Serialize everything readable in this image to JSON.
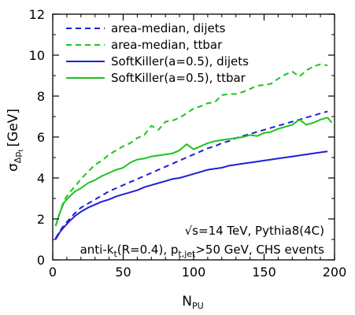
{
  "chart_data": {
    "type": "line",
    "xlabel": "N",
    "xlabel_sub": "PU",
    "ylabel": "σ",
    "ylabel_sub": "Δp",
    "ylabel_subsub": "t",
    "ylabel_unit": "[GeV]",
    "xlim": [
      0,
      200
    ],
    "ylim": [
      0,
      12
    ],
    "xticks": [
      0,
      50,
      100,
      150,
      200
    ],
    "yticks": [
      0,
      2,
      4,
      6,
      8,
      10,
      12
    ],
    "grid": false,
    "legend_position": "top-left",
    "series": [
      {
        "name": "area-median, dijets",
        "color": "#1f1fd6",
        "dash": "dashed",
        "x": [
          2,
          5,
          8,
          12,
          16,
          20,
          25,
          30,
          35,
          40,
          45,
          50,
          55,
          60,
          65,
          70,
          75,
          80,
          85,
          90,
          95,
          100,
          105,
          110,
          115,
          120,
          125,
          130,
          135,
          140,
          145,
          150,
          155,
          160,
          165,
          170,
          175,
          180,
          185,
          190,
          195
        ],
        "values": [
          1.05,
          1.4,
          1.7,
          2.0,
          2.3,
          2.55,
          2.75,
          2.95,
          3.15,
          3.35,
          3.5,
          3.65,
          3.8,
          3.95,
          4.1,
          4.25,
          4.4,
          4.55,
          4.7,
          4.85,
          5.0,
          5.15,
          5.3,
          5.45,
          5.55,
          5.7,
          5.8,
          5.95,
          6.05,
          6.15,
          6.25,
          6.35,
          6.45,
          6.55,
          6.65,
          6.75,
          6.85,
          6.95,
          7.05,
          7.15,
          7.25
        ]
      },
      {
        "name": "area-median, ttbar",
        "color": "#1cc41c",
        "dash": "dashed",
        "x": [
          2,
          5,
          8,
          12,
          16,
          20,
          25,
          30,
          35,
          40,
          45,
          50,
          55,
          60,
          65,
          70,
          75,
          80,
          85,
          90,
          95,
          100,
          105,
          110,
          115,
          120,
          125,
          130,
          135,
          140,
          145,
          150,
          155,
          160,
          165,
          170,
          175,
          180,
          185,
          190,
          195
        ],
        "values": [
          1.65,
          2.3,
          2.9,
          3.3,
          3.6,
          3.95,
          4.3,
          4.65,
          4.85,
          5.15,
          5.35,
          5.55,
          5.7,
          5.95,
          6.1,
          6.55,
          6.35,
          6.75,
          6.8,
          6.95,
          7.15,
          7.4,
          7.5,
          7.65,
          7.7,
          8.05,
          8.1,
          8.1,
          8.2,
          8.35,
          8.5,
          8.55,
          8.6,
          8.85,
          9.05,
          9.2,
          8.95,
          9.25,
          9.45,
          9.55,
          9.5
        ]
      },
      {
        "name": "SoftKiller(a=0.5), dijets",
        "color": "#1f1fd6",
        "dash": "solid",
        "x": [
          2,
          5,
          8,
          12,
          16,
          20,
          25,
          30,
          35,
          40,
          45,
          50,
          55,
          60,
          65,
          70,
          75,
          80,
          85,
          90,
          95,
          100,
          105,
          110,
          115,
          120,
          125,
          130,
          135,
          140,
          145,
          150,
          155,
          160,
          165,
          170,
          175,
          180,
          185,
          190,
          195
        ],
        "values": [
          1.0,
          1.35,
          1.6,
          1.9,
          2.15,
          2.35,
          2.55,
          2.7,
          2.85,
          2.95,
          3.1,
          3.2,
          3.3,
          3.4,
          3.55,
          3.65,
          3.75,
          3.85,
          3.95,
          4.0,
          4.1,
          4.2,
          4.3,
          4.4,
          4.45,
          4.5,
          4.6,
          4.65,
          4.7,
          4.75,
          4.8,
          4.85,
          4.9,
          4.95,
          5.0,
          5.05,
          5.1,
          5.15,
          5.2,
          5.25,
          5.3
        ]
      },
      {
        "name": "SoftKiller(a=0.5), ttbar",
        "color": "#1cc41c",
        "dash": "solid",
        "x": [
          2,
          5,
          8,
          12,
          16,
          20,
          25,
          30,
          35,
          40,
          45,
          50,
          55,
          60,
          65,
          70,
          75,
          80,
          85,
          90,
          95,
          100,
          105,
          110,
          115,
          120,
          125,
          130,
          135,
          140,
          145,
          150,
          155,
          160,
          165,
          170,
          175,
          180,
          185,
          190,
          195,
          198
        ],
        "values": [
          1.65,
          2.3,
          2.8,
          3.1,
          3.35,
          3.5,
          3.75,
          3.9,
          4.1,
          4.25,
          4.4,
          4.5,
          4.75,
          4.9,
          4.95,
          5.05,
          5.1,
          5.15,
          5.2,
          5.35,
          5.65,
          5.4,
          5.55,
          5.7,
          5.8,
          5.85,
          5.9,
          5.95,
          6.0,
          6.1,
          6.05,
          6.2,
          6.25,
          6.4,
          6.5,
          6.6,
          6.85,
          6.6,
          6.7,
          6.85,
          6.95,
          6.7
        ]
      }
    ],
    "annotations": [
      "√s=14 TeV, Pythia8(4C)",
      "anti-k_t(R=0.4), p_t,jet>50 GeV, CHS events"
    ]
  },
  "annotation_text": {
    "line1": "√s=14 TeV, Pythia8(4C)",
    "line2_a": "anti-k",
    "line2_a_sub": "t",
    "line2_b": "(R=0.4), p",
    "line2_b_sub": "t,jet",
    "line2_c": ">50 GeV, CHS events"
  }
}
